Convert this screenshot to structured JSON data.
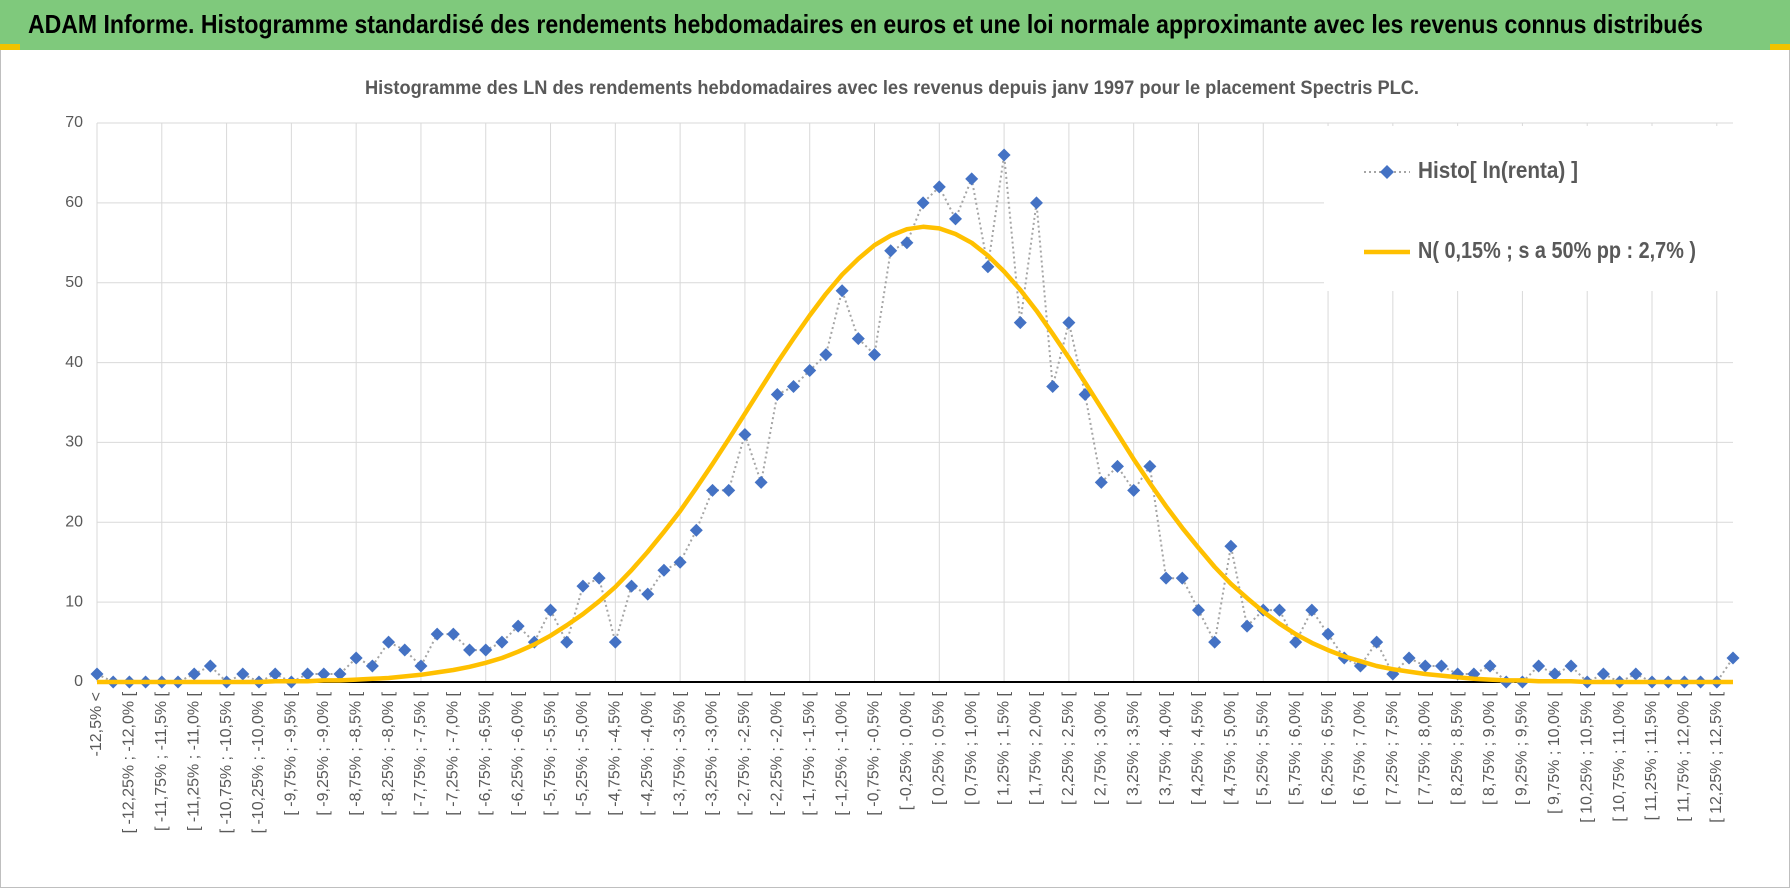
{
  "header": {
    "title": "ADAM Informe. Histogramme standardisé des rendements hebdomadaires en euros et une loi normale approximante avec les revenus connus distribués"
  },
  "chart_data": {
    "type": "line",
    "title": "Histogramme des LN des rendements hebdomadaires avec les revenus depuis janv 1997 pour le placement Spectris PLC.",
    "categories": [
      "-12,5% <",
      null,
      "[ -12,25% ; -12,0% [",
      null,
      "[ -11,75% ; -11,5% [",
      null,
      "[ -11,25% ; -11,0% [",
      null,
      "[ -10,75% ; -10,5% [",
      null,
      "[ -10,25% ; -10,0% [",
      null,
      "[ -9,75% ; -9,5% [",
      null,
      "[ -9,25% ; -9,0% [",
      null,
      "[ -8,75% ; -8,5% [",
      null,
      "[ -8,25% ; -8,0% [",
      null,
      "[ -7,75% ; -7,5% [",
      null,
      "[ -7,25% ; -7,0% [",
      null,
      "[ -6,75% ; -6,5% [",
      null,
      "[ -6,25% ; -6,0% [",
      null,
      "[ -5,75% ; -5,5% [",
      null,
      "[ -5,25% ; -5,0% [",
      null,
      "[ -4,75% ; -4,5% [",
      null,
      "[ -4,25% ; -4,0% [",
      null,
      "[ -3,75% ; -3,5% [",
      null,
      "[ -3,25% ; -3,0% [",
      null,
      "[ -2,75% ; -2,5% [",
      null,
      "[ -2,25% ; -2,0% [",
      null,
      "[ -1,75% ; -1,5% [",
      null,
      "[ -1,25% ; -1,0% [",
      null,
      "[ -0,75% ; -0,5% [",
      null,
      "[ -0,25% ; 0,0% [",
      null,
      "[ 0,25% ; 0,5% [",
      null,
      "[ 0,75% ; 1,0% [",
      null,
      "[ 1,25% ; 1,5% [",
      null,
      "[ 1,75% ; 2,0% [",
      null,
      "[ 2,25% ; 2,5% [",
      null,
      "[ 2,75% ; 3,0% [",
      null,
      "[ 3,25% ; 3,5% [",
      null,
      "[ 3,75% ; 4,0% [",
      null,
      "[ 4,25% ; 4,5% [",
      null,
      "[ 4,75% ; 5,0% [",
      null,
      "[ 5,25% ; 5,5% [",
      null,
      "[ 5,75% ; 6,0% [",
      null,
      "[ 6,25% ; 6,5% [",
      null,
      "[ 6,75% ; 7,0% [",
      null,
      "[ 7,25% ; 7,5% [",
      null,
      "[ 7,75% ; 8,0% [",
      null,
      "[ 8,25% ; 8,5% [",
      null,
      "[ 8,75% ; 9,0% [",
      null,
      "[ 9,25% ; 9,5% [",
      null,
      "[ 9,75% ; 10,0% [",
      null,
      "[ 10,25% ; 10,5% [",
      null,
      "[ 10,75% ; 11,0% [",
      null,
      "[ 11,25% ; 11,5% [",
      null,
      "[ 11,75% ; 12,0% [",
      null,
      "[ 12,25% ; 12,5% [",
      null
    ],
    "series": [
      {
        "name": "Histo[ ln(renta) ]",
        "color": "#4472c4",
        "line_color": "#a5a5a5",
        "line_style": "dotted",
        "marker": "diamond",
        "values": [
          1,
          0,
          0,
          0,
          0,
          0,
          1,
          2,
          0,
          1,
          0,
          1,
          0,
          1,
          1,
          1,
          3,
          2,
          5,
          4,
          2,
          6,
          6,
          4,
          4,
          5,
          7,
          5,
          9,
          5,
          12,
          13,
          5,
          12,
          11,
          14,
          15,
          19,
          24,
          24,
          31,
          25,
          36,
          37,
          39,
          41,
          49,
          43,
          41,
          54,
          55,
          60,
          62,
          58,
          63,
          52,
          66,
          45,
          60,
          37,
          45,
          36,
          25,
          27,
          24,
          27,
          13,
          13,
          9,
          5,
          17,
          7,
          9,
          9,
          5,
          9,
          6,
          3,
          2,
          5,
          1,
          3,
          2,
          2,
          1,
          1,
          2,
          0,
          0,
          2,
          1,
          2,
          0,
          1,
          0,
          1,
          0,
          0,
          0,
          0,
          0,
          3
        ]
      },
      {
        "name": "N( 0,15% ; s a 50% pp : 2,7% )",
        "color": "#ffc000",
        "line_style": "solid",
        "marker": "none",
        "values": [
          0,
          0,
          0,
          0,
          0,
          0,
          0,
          0,
          0,
          0,
          0,
          0.1,
          0.1,
          0.1,
          0.2,
          0.2,
          0.3,
          0.4,
          0.5,
          0.7,
          0.9,
          1.2,
          1.5,
          1.9,
          2.4,
          3.0,
          3.8,
          4.7,
          5.8,
          7.1,
          8.5,
          10.1,
          11.9,
          14.0,
          16.3,
          18.8,
          21.4,
          24.3,
          27.3,
          30.4,
          33.6,
          36.8,
          40.0,
          43.0,
          45.9,
          48.6,
          51.0,
          53.0,
          54.7,
          55.9,
          56.7,
          57.0,
          56.8,
          56.1,
          55.0,
          53.4,
          51.4,
          49.1,
          46.5,
          43.6,
          40.6,
          37.5,
          34.3,
          31.1,
          27.9,
          24.9,
          22.0,
          19.3,
          16.8,
          14.4,
          12.3,
          10.5,
          8.8,
          7.3,
          6.0,
          4.9,
          4.0,
          3.2,
          2.6,
          2.0,
          1.6,
          1.3,
          1.0,
          0.8,
          0.6,
          0.4,
          0.3,
          0.2,
          0.2,
          0.1,
          0.1,
          0.1,
          0,
          0,
          0,
          0,
          0,
          0,
          0,
          0,
          0,
          0
        ]
      }
    ],
    "ylim": [
      0,
      70
    ],
    "yticks": [
      0,
      10,
      20,
      30,
      40,
      50,
      60,
      70
    ],
    "grid": true,
    "legend": "top-right"
  }
}
